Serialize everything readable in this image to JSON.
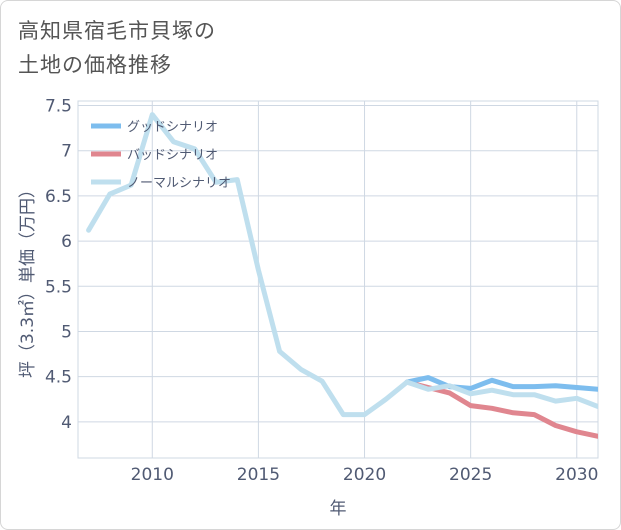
{
  "title": {
    "line1": "高知県宿毛市貝塚の",
    "line2": "土地の価格推移"
  },
  "chart_data": {
    "type": "line",
    "xlabel": "年",
    "ylabel": "坪（3.3㎡）単価（万円）",
    "xlim": [
      2006.5,
      2031
    ],
    "ylim": [
      3.6,
      7.55
    ],
    "x_ticks": [
      2010,
      2015,
      2020,
      2025,
      2030
    ],
    "x_tick_labels": [
      "2010",
      "2015",
      "2020",
      "2025",
      "2030"
    ],
    "y_ticks": [
      4,
      4.5,
      5,
      5.5,
      6,
      6.5,
      7,
      7.5
    ],
    "y_tick_labels": [
      "4",
      "4.5",
      "5",
      "5.5",
      "6",
      "6.5",
      "7",
      "7.5"
    ],
    "legend_position": "top-left",
    "series": [
      {
        "name": "グッドシナリオ",
        "color": "#7dbdee",
        "x": [
          2022,
          2023,
          2024,
          2025,
          2026,
          2027,
          2028,
          2029,
          2030,
          2031
        ],
        "values": [
          4.44,
          4.49,
          4.39,
          4.37,
          4.46,
          4.39,
          4.39,
          4.4,
          4.38,
          4.36
        ]
      },
      {
        "name": "バッドシナリオ",
        "color": "#e0868f",
        "x": [
          2022,
          2023,
          2024,
          2025,
          2026,
          2027,
          2028,
          2029,
          2030,
          2031
        ],
        "values": [
          4.44,
          4.38,
          4.32,
          4.18,
          4.15,
          4.1,
          4.08,
          3.96,
          3.89,
          3.84
        ]
      },
      {
        "name": "ノーマルシナリオ",
        "color": "#bfdfee",
        "x": [
          2007,
          2008,
          2009,
          2010,
          2011,
          2012,
          2013,
          2014,
          2015,
          2016,
          2017,
          2018,
          2019,
          2020,
          2021,
          2022,
          2023,
          2024,
          2025,
          2026,
          2027,
          2028,
          2029,
          2030,
          2031
        ],
        "values": [
          6.12,
          6.52,
          6.62,
          7.4,
          7.1,
          7.02,
          6.65,
          6.68,
          5.68,
          4.78,
          4.58,
          4.45,
          4.08,
          4.08,
          4.25,
          4.44,
          4.36,
          4.4,
          4.31,
          4.35,
          4.3,
          4.3,
          4.23,
          4.26,
          4.17
        ]
      }
    ]
  }
}
